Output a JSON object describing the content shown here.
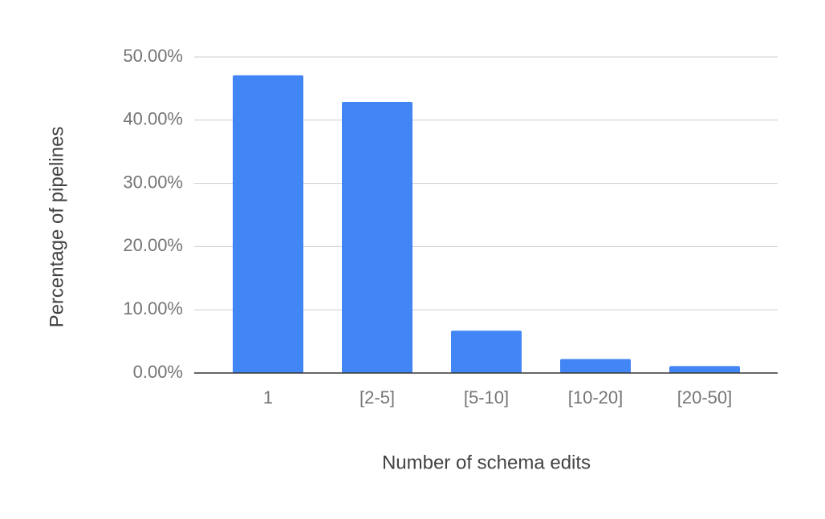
{
  "chart_data": {
    "type": "bar",
    "x_label": "Number of schema edits",
    "y_label": "Percentage of pipelines",
    "categories": [
      "1",
      "[2-5]",
      "[5-10]",
      "[10-20]",
      "[20-50]"
    ],
    "values": [
      47.1,
      42.9,
      6.7,
      2.2,
      1.1
    ],
    "color": "#4285f4",
    "ylim": [
      0,
      50
    ],
    "yticks": [
      {
        "value": 0,
        "label": "0.00%"
      },
      {
        "value": 10,
        "label": "10.00%"
      },
      {
        "value": 20,
        "label": "20.00%"
      },
      {
        "value": 30,
        "label": "30.00%"
      },
      {
        "value": 40,
        "label": "40.00%"
      },
      {
        "value": 50,
        "label": "50.00%"
      }
    ],
    "grid": true
  }
}
